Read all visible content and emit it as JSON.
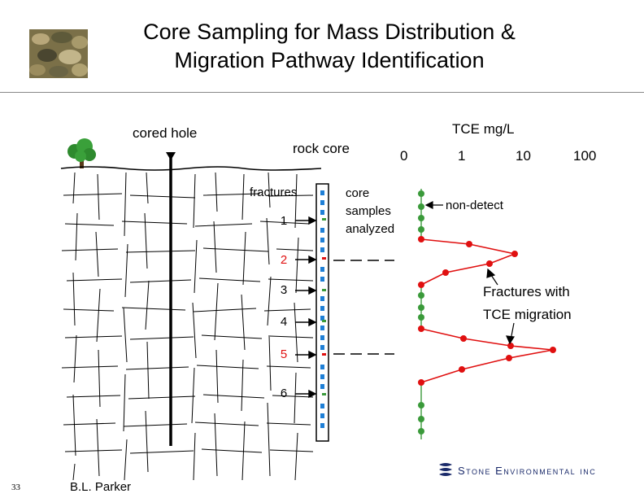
{
  "slide": {
    "title_line1": "Core Sampling for Mass Distribution &",
    "title_line2": "Migration Pathway Identification",
    "page_number": "33",
    "author": "B.L. Parker",
    "company": "Stone Environmental inc"
  },
  "labels": {
    "cored_hole": "cored hole",
    "rock_core": "rock core",
    "fractures": "fractures",
    "core_samples_1": "core",
    "core_samples_2": "samples",
    "core_samples_3": "analyzed",
    "tce_axis": "TCE  mg/L",
    "non_detect": "non-detect",
    "fractures_migration_1": "Fractures with",
    "fractures_migration_2": "TCE migration"
  },
  "axis_ticks": [
    "0",
    "1",
    "10",
    "100"
  ],
  "fractures": [
    {
      "num": "1",
      "color": "#000000",
      "tce_migration": false
    },
    {
      "num": "2",
      "color": "#e01010",
      "tce_migration": true
    },
    {
      "num": "3",
      "color": "#000000",
      "tce_migration": false
    },
    {
      "num": "4",
      "color": "#000000",
      "tce_migration": false
    },
    {
      "num": "5",
      "color": "#e01010",
      "tce_migration": true
    },
    {
      "num": "6",
      "color": "#000000",
      "tce_migration": false
    }
  ],
  "colors": {
    "detect": "#e01010",
    "non_detect": "#3a9a3a",
    "core_sample": "#1e7fd6"
  }
}
